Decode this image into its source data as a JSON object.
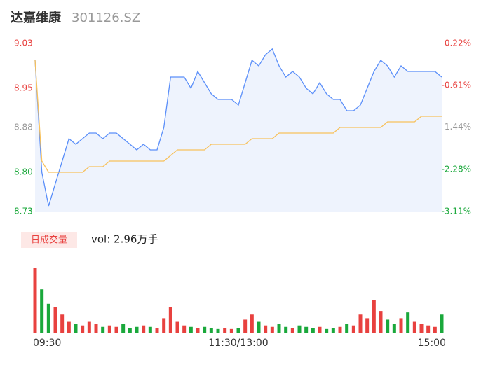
{
  "chart_data": [
    {
      "type": "line",
      "title": "达嘉维康",
      "subtitle": "301126.SZ",
      "categories": [
        "09:30",
        null,
        null,
        null,
        null,
        null,
        null,
        null,
        null,
        null,
        null,
        null,
        null,
        null,
        null,
        null,
        null,
        null,
        null,
        null,
        null,
        null,
        null,
        null,
        null,
        null,
        null,
        null,
        null,
        null,
        "11:30/13:00",
        null,
        null,
        null,
        null,
        null,
        null,
        null,
        null,
        null,
        null,
        null,
        null,
        null,
        null,
        null,
        null,
        null,
        null,
        null,
        null,
        null,
        null,
        null,
        null,
        null,
        null,
        null,
        null,
        null,
        "15:00"
      ],
      "series": [
        {
          "color": "#5b8ff9",
          "values": [
            9.0,
            8.8,
            8.74,
            8.78,
            8.82,
            8.86,
            8.85,
            8.86,
            8.87,
            8.87,
            8.86,
            8.87,
            8.87,
            8.86,
            8.85,
            8.84,
            8.85,
            8.84,
            8.84,
            8.88,
            8.97,
            8.97,
            8.97,
            8.95,
            8.98,
            8.96,
            8.94,
            8.93,
            8.93,
            8.93,
            8.92,
            8.96,
            9.0,
            8.99,
            9.01,
            9.02,
            8.99,
            8.97,
            8.98,
            8.97,
            8.95,
            8.94,
            8.96,
            8.94,
            8.93,
            8.93,
            8.91,
            8.91,
            8.92,
            8.95,
            8.98,
            9.0,
            8.99,
            8.97,
            8.99,
            8.98,
            8.98,
            8.98,
            8.98,
            8.98,
            8.97
          ]
        },
        {
          "color": "#f7c15c",
          "values": [
            9.0,
            8.82,
            8.8,
            8.8,
            8.8,
            8.8,
            8.8,
            8.8,
            8.81,
            8.81,
            8.81,
            8.82,
            8.82,
            8.82,
            8.82,
            8.82,
            8.82,
            8.82,
            8.82,
            8.82,
            8.83,
            8.84,
            8.84,
            8.84,
            8.84,
            8.84,
            8.85,
            8.85,
            8.85,
            8.85,
            8.85,
            8.85,
            8.86,
            8.86,
            8.86,
            8.86,
            8.87,
            8.87,
            8.87,
            8.87,
            8.87,
            8.87,
            8.87,
            8.87,
            8.87,
            8.88,
            8.88,
            8.88,
            8.88,
            8.88,
            8.88,
            8.88,
            8.89,
            8.89,
            8.89,
            8.89,
            8.89,
            8.9,
            8.9,
            8.9,
            8.9
          ]
        }
      ],
      "ylim": [
        8.73,
        9.03
      ],
      "yticks": [
        8.73,
        {
          "value": 8.8,
          "label": "8.80"
        },
        8.88,
        8.95,
        9.03
      ],
      "y2lim": [
        -3.11,
        0.22
      ],
      "y2ticks": [
        {
          "value": -3.11,
          "label": "-3.11%"
        },
        {
          "value": -2.28,
          "label": "-2.28%"
        },
        {
          "value": -1.44,
          "label": "-1.44%"
        },
        {
          "value": -0.61,
          "label": "-0.61%"
        },
        {
          "value": 0.22,
          "label": "0.22%"
        }
      ],
      "up_color": "#e8413f",
      "down_color": "#1aa83b",
      "flat_color": "#999999"
    },
    {
      "type": "bar",
      "badge": "日成交量",
      "label": "vol: 2.96万手",
      "values": [
        90,
        60,
        40,
        35,
        25,
        15,
        12,
        10,
        15,
        12,
        8,
        10,
        8,
        12,
        6,
        8,
        10,
        8,
        6,
        20,
        35,
        15,
        10,
        8,
        6,
        8,
        6,
        5,
        6,
        5,
        6,
        18,
        25,
        15,
        10,
        8,
        12,
        8,
        6,
        10,
        8,
        6,
        8,
        5,
        6,
        8,
        12,
        10,
        25,
        20,
        45,
        30,
        18,
        12,
        20,
        28,
        15,
        12,
        10,
        8,
        25
      ],
      "ylim": [
        0,
        100
      ],
      "up_color": "#e8413f",
      "down_color": "#1aa83b"
    }
  ]
}
